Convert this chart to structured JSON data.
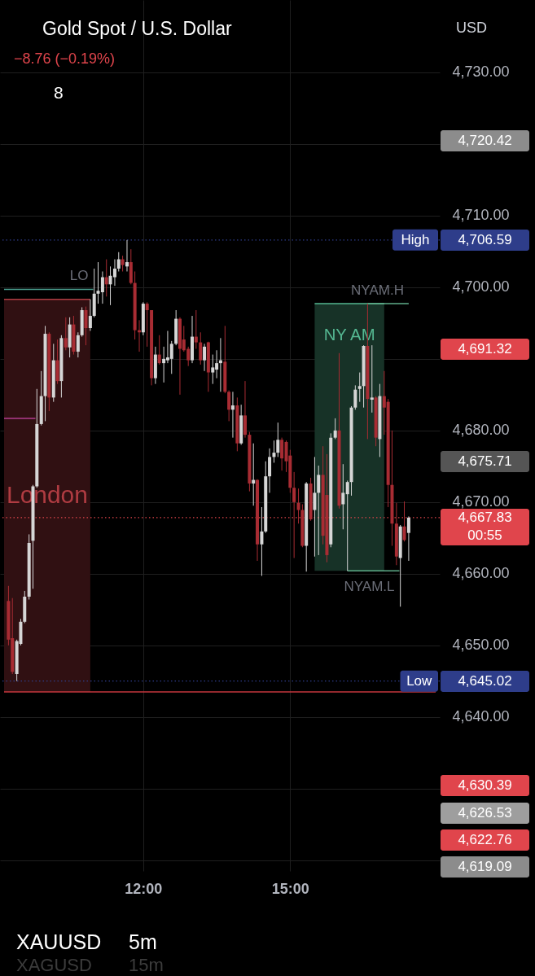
{
  "chart_data": {
    "type": "candlestick",
    "title": "Gold Spot / U.S. Dollar",
    "subtitle": "−8.76 (−0.19%)",
    "xlim": [
      9.16,
      17.97
    ],
    "ylim": [
      4618.5,
      4740.1
    ],
    "xticks": [
      {
        "value": 12,
        "label": "12:00"
      },
      {
        "value": 15,
        "label": "15:00"
      }
    ],
    "yticks": [
      {
        "value": 4730,
        "label": "4,730.00"
      },
      {
        "value": 4720,
        "label": null
      },
      {
        "value": 4710,
        "label": "4,710.00"
      },
      {
        "value": 4700,
        "label": "4,700.00"
      },
      {
        "value": 4690,
        "label": null
      },
      {
        "value": 4680,
        "label": "4,680.00"
      },
      {
        "value": 4670,
        "label": "4,670.00"
      },
      {
        "value": 4660,
        "label": "4,660.00"
      },
      {
        "value": 4650,
        "label": "4,650.00"
      },
      {
        "value": 4640,
        "label": "4,640.00"
      },
      {
        "value": 4630,
        "label": null
      },
      {
        "value": 4620,
        "label": null
      }
    ],
    "grid": true,
    "x": [
      9.25,
      9.33,
      9.42,
      9.5,
      9.58,
      9.67,
      9.75,
      9.83,
      9.92,
      10,
      10.08,
      10.17,
      10.25,
      10.33,
      10.42,
      10.5,
      10.58,
      10.67,
      10.75,
      10.83,
      10.92,
      11,
      11.08,
      11.17,
      11.25,
      11.33,
      11.42,
      11.5,
      11.58,
      11.67,
      11.75,
      11.83,
      11.92,
      12,
      12.08,
      12.17,
      12.25,
      12.33,
      12.42,
      12.5,
      12.58,
      12.67,
      12.75,
      12.83,
      12.92,
      13,
      13.08,
      13.17,
      13.25,
      13.33,
      13.42,
      13.5,
      13.58,
      13.67,
      13.75,
      13.83,
      13.92,
      14,
      14.08,
      14.17,
      14.25,
      14.33,
      14.42,
      14.5,
      14.58,
      14.67,
      14.75,
      14.83,
      14.92,
      15,
      15.08,
      15.17,
      15.25,
      15.33,
      15.42,
      15.5,
      15.58,
      15.67,
      15.75,
      15.83,
      15.92,
      16,
      16.08,
      16.17,
      16.25,
      16.33,
      16.42,
      16.5,
      16.58,
      16.67,
      16.75,
      16.83,
      16.92,
      17,
      17.08,
      17.17,
      17.25,
      17.33,
      17.42
    ],
    "ohlc": [
      [
        4656.2,
        4658.3,
        4650.0,
        4650.8
      ],
      [
        4651.0,
        4656.6,
        4646.0,
        4646.3
      ],
      [
        4646.0,
        4650.8,
        4645.02,
        4650.6
      ],
      [
        4650.2,
        4653.7,
        4650.0,
        4653.3
      ],
      [
        4653.3,
        4657.6,
        4653.1,
        4656.8
      ],
      [
        4656.8,
        4665.5,
        4656.4,
        4664.3
      ],
      [
        4664.6,
        4672.4,
        4657.9,
        4672.2
      ],
      [
        4672.2,
        4685.8,
        4672.0,
        4680.9
      ],
      [
        4680.9,
        4688.3,
        4680.7,
        4684.8
      ],
      [
        4684.8,
        4694.6,
        4681.3,
        4693.5
      ],
      [
        4693.5,
        4693.7,
        4682.7,
        4684.6
      ],
      [
        4684.6,
        4692.1,
        4684.0,
        4689.8
      ],
      [
        4689.8,
        4692.7,
        4686.5,
        4686.9
      ],
      [
        4686.9,
        4693.3,
        4684.6,
        4692.9
      ],
      [
        4692.9,
        4695.8,
        4691.2,
        4691.6
      ],
      [
        4691.6,
        4695.8,
        4690.2,
        4694.8
      ],
      [
        4694.8,
        4696.0,
        4690.6,
        4691.0
      ],
      [
        4691.0,
        4693.7,
        4690.2,
        4693.3
      ],
      [
        4693.3,
        4697.2,
        4693.1,
        4696.8
      ],
      [
        4696.8,
        4697.3,
        4691.9,
        4694.3
      ],
      [
        4694.3,
        4698.3,
        4693.9,
        4696.0
      ],
      [
        4696.0,
        4702.6,
        4695.8,
        4699.1
      ],
      [
        4699.1,
        4703.5,
        4697.7,
        4699.5
      ],
      [
        4699.3,
        4702.2,
        4697.7,
        4701.4
      ],
      [
        4701.4,
        4703.9,
        4698.7,
        4700.4
      ],
      [
        4700.4,
        4702.9,
        4697.5,
        4701.6
      ],
      [
        4701.4,
        4703.9,
        4700.2,
        4702.6
      ],
      [
        4702.6,
        4704.9,
        4702.2,
        4703.9
      ],
      [
        4703.9,
        4704.4,
        4702.2,
        4703.1
      ],
      [
        4702.9,
        4706.59,
        4702.2,
        4703.5
      ],
      [
        4703.5,
        4705.3,
        4700.4,
        4700.6
      ],
      [
        4700.6,
        4702.2,
        4692.7,
        4694.0
      ],
      [
        4694.0,
        4695.4,
        4691.0,
        4693.7
      ],
      [
        4693.7,
        4697.9,
        4693.3,
        4697.7
      ],
      [
        4697.7,
        4697.9,
        4691.7,
        4696.8
      ],
      [
        4696.8,
        4696.8,
        4686.3,
        4687.3
      ],
      [
        4687.3,
        4691.7,
        4686.5,
        4690.6
      ],
      [
        4690.6,
        4693.3,
        4689.2,
        4689.4
      ],
      [
        4689.4,
        4691.7,
        4686.7,
        4690.0
      ],
      [
        4689.8,
        4693.9,
        4689.4,
        4690.2
      ],
      [
        4690.0,
        4692.5,
        4687.9,
        4692.1
      ],
      [
        4692.1,
        4696.8,
        4691.9,
        4695.6
      ],
      [
        4695.6,
        4695.8,
        4685.0,
        4691.4
      ],
      [
        4692.7,
        4694.6,
        4691.0,
        4691.2
      ],
      [
        4691.4,
        4691.7,
        4689.0,
        4689.8
      ],
      [
        4689.8,
        4696.0,
        4689.4,
        4693.1
      ],
      [
        4693.1,
        4696.8,
        4691.4,
        4692.3
      ],
      [
        4692.3,
        4693.7,
        4689.2,
        4689.8
      ],
      [
        4689.8,
        4692.1,
        4688.3,
        4691.7
      ],
      [
        4692.3,
        4692.4,
        4685.4,
        4688.1
      ],
      [
        4688.1,
        4690.6,
        4686.5,
        4688.8
      ],
      [
        4688.5,
        4691.2,
        4687.3,
        4689.4
      ],
      [
        4689.4,
        4692.9,
        4685.4,
        4689.8
      ],
      [
        4689.6,
        4694.6,
        4685.2,
        4685.4
      ],
      [
        4685.4,
        4685.6,
        4681.3,
        4682.9
      ],
      [
        4682.9,
        4685.4,
        4679.0,
        4683.5
      ],
      [
        4683.5,
        4684.6,
        4677.1,
        4678.2
      ],
      [
        4678.2,
        4683.6,
        4678.0,
        4682.1
      ],
      [
        4682.1,
        4686.9,
        4679.0,
        4679.4
      ],
      [
        4679.4,
        4679.8,
        4671.5,
        4672.6
      ],
      [
        4672.6,
        4678.2,
        4669.5,
        4673.1
      ],
      [
        4673.1,
        4673.2,
        4661.8,
        4664.1
      ],
      [
        4664.1,
        4669.3,
        4659.7,
        4665.9
      ],
      [
        4665.9,
        4675.7,
        4665.7,
        4673.6
      ],
      [
        4673.6,
        4677.5,
        4671.3,
        4676.3
      ],
      [
        4676.3,
        4678.6,
        4675.5,
        4676.9
      ],
      [
        4676.9,
        4681.1,
        4676.3,
        4678.7
      ],
      [
        4678.7,
        4679.0,
        4674.4,
        4676.1
      ],
      [
        4678.4,
        4678.6,
        4674.2,
        4675.7
      ],
      [
        4676.5,
        4677.3,
        4671.3,
        4672.0
      ],
      [
        4672.0,
        4674.2,
        4662.2,
        4670.0
      ],
      [
        4669.9,
        4671.9,
        4667.0,
        4668.9
      ],
      [
        4668.9,
        4669.7,
        4663.7,
        4663.9
      ],
      [
        4663.9,
        4672.8,
        4660.3,
        4672.6
      ],
      [
        4672.6,
        4673.4,
        4667.4,
        4667.6
      ],
      [
        4668.9,
        4676.3,
        4662.4,
        4671.3
      ],
      [
        4671.3,
        4675.1,
        4662.6,
        4673.8
      ],
      [
        4673.8,
        4677.8,
        4664.1,
        4665.3
      ],
      [
        4671.0,
        4676.7,
        4661.6,
        4662.6
      ],
      [
        4664.1,
        4679.6,
        4663.7,
        4679.0
      ],
      [
        4679.0,
        4681.7,
        4678.8,
        4680.0
      ],
      [
        4680.0,
        4690.8,
        4669.1,
        4669.5
      ],
      [
        4669.7,
        4675.3,
        4666.2,
        4671.3
      ],
      [
        4671.1,
        4673.0,
        4660.4,
        4672.8
      ],
      [
        4672.8,
        4683.4,
        4670.9,
        4683.2
      ],
      [
        4683.2,
        4686.3,
        4682.9,
        4685.7
      ],
      [
        4685.8,
        4688.1,
        4684.0,
        4686.2
      ],
      [
        4686.2,
        4691.9,
        4683.2,
        4691.8
      ],
      [
        4691.8,
        4697.7,
        4678.8,
        4684.4
      ],
      [
        4684.3,
        4691.9,
        4682.5,
        4684.6
      ],
      [
        4684.6,
        4684.8,
        4677.8,
        4679.0
      ],
      [
        4678.8,
        4686.5,
        4676.3,
        4684.8
      ],
      [
        4684.8,
        4688.3,
        4679.4,
        4683.2
      ],
      [
        4684.0,
        4684.4,
        4669.3,
        4672.4
      ],
      [
        4672.4,
        4680.0,
        4663.9,
        4667.0
      ],
      [
        4667.0,
        4669.9,
        4661.2,
        4662.4
      ],
      [
        4662.2,
        4666.8,
        4655.4,
        4666.6
      ],
      [
        4666.6,
        4670.1,
        4664.5,
        4664.7
      ],
      [
        4665.7,
        4668.0,
        4661.8,
        4667.83
      ]
    ],
    "colors": [
      "#a82c33",
      "#a82c33",
      "#d6d6d6",
      "#d6d6d6",
      "#d6d6d6",
      "#d6d6d6",
      "#d6d6d6",
      "#d6d6d6",
      "#d6d6d6",
      "#d6d6d6",
      "#a82c33",
      "#d6d6d6",
      "#a82c33",
      "#d6d6d6",
      "#a82c33",
      "#d6d6d6",
      "#a82c33",
      "#d6d6d6",
      "#d6d6d6",
      "#a82c33",
      "#d6d6d6",
      "#d6d6d6",
      "#d6d6d6",
      "#d6d6d6",
      "#a82c33",
      "#d6d6d6",
      "#d6d6d6",
      "#d6d6d6",
      "#a82c33",
      "#d6d6d6",
      "#a82c33",
      "#a82c33",
      "#a82c33",
      "#d6d6d6",
      "#a82c33",
      "#a82c33",
      "#d6d6d6",
      "#a82c33",
      "#d6d6d6",
      "#d6d6d6",
      "#d6d6d6",
      "#d6d6d6",
      "#a82c33",
      "#a82c33",
      "#a82c33",
      "#d6d6d6",
      "#a82c33",
      "#a82c33",
      "#d6d6d6",
      "#a82c33",
      "#d6d6d6",
      "#d6d6d6",
      "#d6d6d6",
      "#a82c33",
      "#a82c33",
      "#d6d6d6",
      "#a82c33",
      "#d6d6d6",
      "#a82c33",
      "#a82c33",
      "#d6d6d6",
      "#a82c33",
      "#d6d6d6",
      "#d6d6d6",
      "#d6d6d6",
      "#d6d6d6",
      "#d6d6d6",
      "#a82c33",
      "#a82c33",
      "#a82c33",
      "#a82c33",
      "#a82c33",
      "#a82c33",
      "#d6d6d6",
      "#a82c33",
      "#d6d6d6",
      "#d6d6d6",
      "#a82c33",
      "#a82c33",
      "#d6d6d6",
      "#d6d6d6",
      "#a82c33",
      "#d6d6d6",
      "#d6d6d6",
      "#d6d6d6",
      "#d6d6d6",
      "#d6d6d6",
      "#d6d6d6",
      "#a82c33",
      "#d6d6d6",
      "#a82c33",
      "#d6d6d6",
      "#a82c33",
      "#a82c33",
      "#a82c33",
      "#a82c33",
      "#d6d6d6",
      "#a82c33",
      "#d6d6d6"
    ],
    "series": [
      {
        "type": "line",
        "name": "London",
        "color": "#b03c42",
        "x": [
          9.16,
          10.92
        ],
        "values": [
          4698.3,
          4698.3
        ],
        "lower": [
          4643.5,
          4643.5
        ],
        "upper": [
          4698.3,
          4698.3
        ]
      },
      {
        "type": "line",
        "name": "NY AM",
        "color": "#55b892",
        "x": [
          15.5,
          16.92
        ],
        "values": [
          4697.7,
          4697.7
        ],
        "lower": [
          4660.4,
          4660.4
        ],
        "upper": [
          4697.7,
          4697.7
        ]
      },
      {
        "type": "line",
        "name": "LO",
        "color": "#4a9e8e",
        "x": [
          9.16,
          10.98
        ],
        "values": [
          4699.7,
          4699.7
        ]
      },
      {
        "type": "line",
        "color": "#c4363d",
        "x": [
          9.16,
          17.97
        ],
        "values": [
          4643.5,
          4643.5
        ]
      },
      {
        "type": "line",
        "color": "#b13c8e",
        "x": [
          9.16,
          9.8
        ],
        "values": [
          4681.7,
          4681.7
        ]
      },
      {
        "type": "line",
        "name": "NYAM.H",
        "color": "#5fae8a",
        "x": [
          16.58,
          17.42
        ],
        "values": [
          4697.7,
          4697.7
        ]
      },
      {
        "type": "line",
        "name": "NYAM.L",
        "color": "#5fae8a",
        "x": [
          16.17,
          17.23
        ],
        "values": [
          4660.4,
          4660.4
        ]
      }
    ],
    "ref_lines": [
      {
        "axis": "y",
        "value": 4706.59,
        "label": "High",
        "line_style": "dotted",
        "color": "#2e3d8a"
      },
      {
        "axis": "y",
        "value": 4667.83,
        "line_style": "dotted",
        "color": "#e0454c"
      },
      {
        "axis": "y",
        "value": 4645.02,
        "label": "Low",
        "line_style": "dotted",
        "color": "#2e3d8a"
      }
    ],
    "annotations": [
      "USD",
      "8",
      "XAUUSD",
      "5m",
      "XAGUSD",
      "15m",
      "4,720.42",
      "4,706.59",
      "4,691.32",
      "4,675.71",
      "4,667.83",
      "00:55",
      "4,645.02",
      "4,630.39",
      "4,626.53",
      "4,622.76",
      "4,619.09"
    ]
  }
}
